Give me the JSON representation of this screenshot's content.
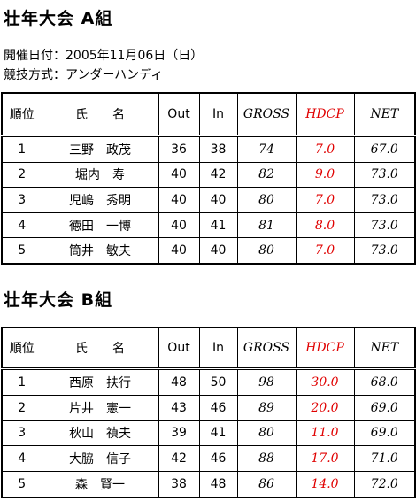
{
  "header": {
    "title": "壮年大会 A組",
    "date": "開催日付：2005年11月06日（日）",
    "method": "競技方式：アンダーハンディ"
  },
  "tables": [
    {
      "title": "壮年大会 A組",
      "columns": [
        "順位",
        "氏　　名",
        "Out",
        "In",
        "GROSS",
        "HDCP",
        "NET"
      ],
      "rows": [
        [
          "1",
          "三野　政茂",
          "36",
          "38",
          "74",
          "7.0",
          "67.0"
        ],
        [
          "2",
          "堀内　寿",
          "40",
          "42",
          "82",
          "9.0",
          "73.0"
        ],
        [
          "3",
          "児嶋　秀明",
          "40",
          "40",
          "80",
          "7.0",
          "73.0"
        ],
        [
          "4",
          "徳田　一博",
          "40",
          "41",
          "81",
          "8.0",
          "73.0"
        ],
        [
          "5",
          "筒井　敏夫",
          "40",
          "40",
          "80",
          "7.0",
          "73.0"
        ]
      ]
    },
    {
      "title": "壮年大会 B組",
      "columns": [
        "順位",
        "氏　　名",
        "Out",
        "In",
        "GROSS",
        "HDCP",
        "NET"
      ],
      "rows": [
        [
          "1",
          "西原　扶行",
          "48",
          "50",
          "98",
          "30.0",
          "68.0"
        ],
        [
          "2",
          "片井　憲一",
          "43",
          "46",
          "89",
          "20.0",
          "69.0"
        ],
        [
          "3",
          "秋山　禎夫",
          "39",
          "41",
          "80",
          "11.0",
          "69.0"
        ],
        [
          "4",
          "大脇　信子",
          "42",
          "46",
          "88",
          "17.0",
          "71.0"
        ],
        [
          "5",
          "森　賢一",
          "38",
          "48",
          "86",
          "14.0",
          "72.0"
        ]
      ]
    }
  ]
}
